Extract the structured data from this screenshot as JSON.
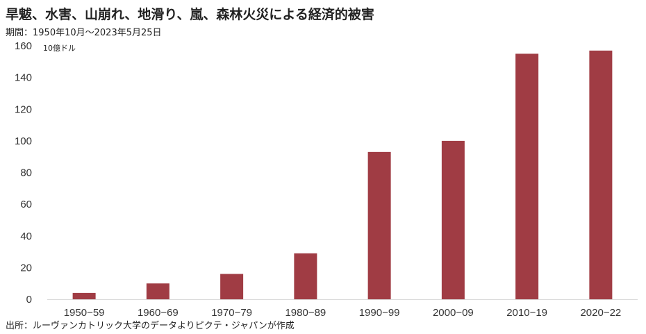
{
  "title": "旱魃、水害、山崩れ、地滑り、嵐、森林火災による経済的被害",
  "subtitle": "期間：1950年10月〜2023年5月25日",
  "source": "出所：ルーヴァンカトリック大学のデータよりピクテ・ジャパンが作成",
  "colors": {
    "bar": "#A03C44",
    "axis": "#d9d9d9"
  },
  "chart_data": {
    "type": "bar",
    "categories": [
      "1950−59",
      "1960−69",
      "1970−79",
      "1980−89",
      "1990−99",
      "2000−09",
      "2010−19",
      "2020−22"
    ],
    "values": [
      4,
      10,
      16,
      29,
      93,
      100,
      155,
      157
    ],
    "title": "旱魃、水害、山崩れ、地滑り、嵐、森林火災による経済的被害",
    "xlabel": "",
    "ylabel": "10億ドル",
    "ylim": [
      0,
      160
    ],
    "yticks": [
      0,
      20,
      40,
      60,
      80,
      100,
      120,
      140,
      160
    ],
    "grid": false,
    "legend": "none"
  }
}
